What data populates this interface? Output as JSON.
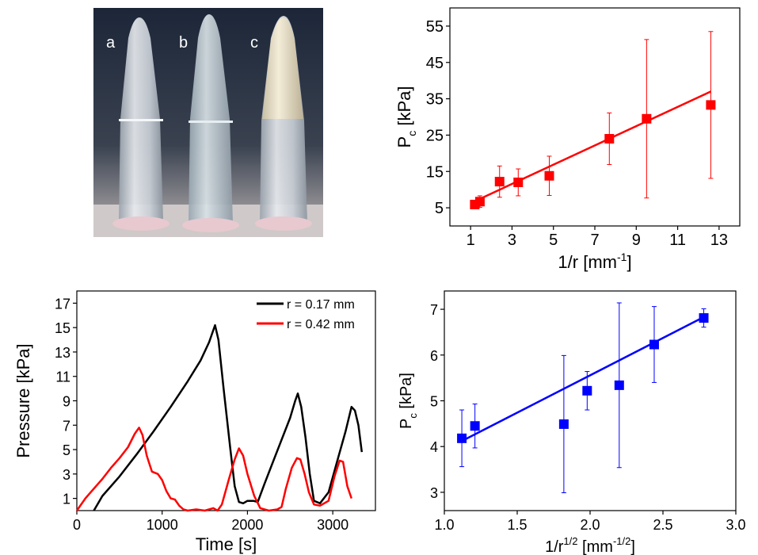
{
  "photo": {
    "labels": [
      "a",
      "b",
      "c"
    ]
  },
  "chart_data": [
    {
      "id": "top-right",
      "type": "scatter",
      "xlabel": "1/r [mm",
      "xlabel_sup": "-1",
      "xlabel_tail": "]",
      "ylabel": "P",
      "ylabel_sub": "c",
      "ylabel_tail": " [kPa]",
      "xlim": [
        0,
        14
      ],
      "ylim": [
        0,
        60
      ],
      "xticks": [
        1,
        3,
        5,
        7,
        9,
        11,
        13
      ],
      "yticks": [
        5,
        15,
        25,
        35,
        45,
        55
      ],
      "color": "#ff0000",
      "points": [
        {
          "x": 1.2,
          "y": 5.9,
          "err": 0.6
        },
        {
          "x": 1.45,
          "y": 6.7,
          "err": 1.6
        },
        {
          "x": 2.4,
          "y": 12.2,
          "err": 4.3
        },
        {
          "x": 3.3,
          "y": 12.0,
          "err": 3.7
        },
        {
          "x": 4.8,
          "y": 13.8,
          "err": 5.4
        },
        {
          "x": 7.7,
          "y": 24.0,
          "err": 7.1
        },
        {
          "x": 9.5,
          "y": 29.5,
          "err": 21.8
        },
        {
          "x": 12.6,
          "y": 33.3,
          "err": 20.2
        }
      ],
      "fit": [
        [
          1.2,
          6.8
        ],
        [
          12.6,
          37.0
        ]
      ]
    },
    {
      "id": "bottom-left",
      "type": "line",
      "xlabel": "Time [s]",
      "ylabel": "Pressure [kPa]",
      "xlim": [
        0,
        3500
      ],
      "ylim": [
        0,
        18
      ],
      "xticks": [
        0,
        1000,
        2000,
        3000
      ],
      "yticks": [
        1,
        3,
        5,
        7,
        9,
        11,
        13,
        15,
        17
      ],
      "legend_position": "top-right",
      "series": [
        {
          "name": "r = 0.17 mm",
          "color": "#000000",
          "points": [
            [
              200,
              0
            ],
            [
              300,
              1.2
            ],
            [
              500,
              2.8
            ],
            [
              700,
              4.6
            ],
            [
              900,
              6.5
            ],
            [
              1100,
              8.5
            ],
            [
              1300,
              10.6
            ],
            [
              1450,
              12.3
            ],
            [
              1550,
              13.8
            ],
            [
              1620,
              15.2
            ],
            [
              1660,
              14.0
            ],
            [
              1720,
              10.0
            ],
            [
              1800,
              5.0
            ],
            [
              1850,
              2.0
            ],
            [
              1900,
              0.7
            ],
            [
              1950,
              0.6
            ],
            [
              2000,
              0.8
            ],
            [
              2070,
              0.8
            ],
            [
              2120,
              0.7
            ],
            [
              2200,
              2.2
            ],
            [
              2300,
              4.0
            ],
            [
              2400,
              5.8
            ],
            [
              2500,
              7.6
            ],
            [
              2560,
              9.0
            ],
            [
              2590,
              9.6
            ],
            [
              2630,
              8.5
            ],
            [
              2680,
              6.0
            ],
            [
              2730,
              3.0
            ],
            [
              2780,
              0.8
            ],
            [
              2850,
              0.6
            ],
            [
              2950,
              1.5
            ],
            [
              3050,
              4.0
            ],
            [
              3150,
              6.5
            ],
            [
              3220,
              8.5
            ],
            [
              3260,
              8.2
            ],
            [
              3300,
              7.0
            ],
            [
              3340,
              4.8
            ]
          ]
        },
        {
          "name": "r = 0.42 mm",
          "color": "#ff0000",
          "points": [
            [
              0,
              0
            ],
            [
              100,
              1.0
            ],
            [
              200,
              1.8
            ],
            [
              300,
              2.6
            ],
            [
              400,
              3.5
            ],
            [
              500,
              4.3
            ],
            [
              600,
              5.2
            ],
            [
              680,
              6.3
            ],
            [
              730,
              6.8
            ],
            [
              770,
              6.2
            ],
            [
              820,
              4.5
            ],
            [
              880,
              3.2
            ],
            [
              950,
              3.0
            ],
            [
              1000,
              2.5
            ],
            [
              1050,
              1.6
            ],
            [
              1100,
              1.0
            ],
            [
              1150,
              0.9
            ],
            [
              1200,
              0.4
            ],
            [
              1250,
              0.1
            ],
            [
              1300,
              0.0
            ],
            [
              1400,
              0.1
            ],
            [
              1500,
              0.0
            ],
            [
              1600,
              0.2
            ],
            [
              1650,
              0.0
            ],
            [
              1700,
              0.5
            ],
            [
              1780,
              2.5
            ],
            [
              1850,
              4.2
            ],
            [
              1900,
              5.1
            ],
            [
              1950,
              4.5
            ],
            [
              2000,
              3.0
            ],
            [
              2080,
              1.2
            ],
            [
              2150,
              0.2
            ],
            [
              2250,
              0.0
            ],
            [
              2350,
              0.1
            ],
            [
              2400,
              0.3
            ],
            [
              2450,
              1.8
            ],
            [
              2520,
              3.5
            ],
            [
              2580,
              4.3
            ],
            [
              2620,
              4.2
            ],
            [
              2670,
              3.0
            ],
            [
              2720,
              1.5
            ],
            [
              2780,
              0.5
            ],
            [
              2850,
              0.4
            ],
            [
              2950,
              0.8
            ],
            [
              3020,
              2.8
            ],
            [
              3080,
              4.1
            ],
            [
              3120,
              4.0
            ],
            [
              3170,
              2.0
            ],
            [
              3220,
              1.0
            ]
          ]
        }
      ]
    },
    {
      "id": "bottom-right",
      "type": "scatter",
      "xlabel": "1/r",
      "xlabel_sup": "1/2",
      "xlabel_mid": " [mm",
      "xlabel_sup2": "-1/2",
      "xlabel_tail": "]",
      "ylabel": "P",
      "ylabel_sub": "c",
      "ylabel_tail": " [kPa]",
      "xlim": [
        1.0,
        3.0
      ],
      "ylim": [
        2.6,
        7.4
      ],
      "xticks": [
        1.0,
        1.5,
        2.0,
        2.5,
        3.0
      ],
      "xtick_labels": [
        "1.0",
        "1.5",
        "2.0",
        "2.5",
        "3.0"
      ],
      "yticks": [
        3,
        4,
        5,
        6,
        7
      ],
      "color": "#0000ff",
      "points": [
        {
          "x": 1.12,
          "y": 4.18,
          "err": 0.62
        },
        {
          "x": 1.21,
          "y": 4.45,
          "err": 0.48
        },
        {
          "x": 1.82,
          "y": 4.49,
          "err": 1.5
        },
        {
          "x": 1.98,
          "y": 5.22,
          "err": 0.42
        },
        {
          "x": 2.2,
          "y": 5.34,
          "err": 1.8
        },
        {
          "x": 2.44,
          "y": 6.23,
          "err": 0.83
        },
        {
          "x": 2.78,
          "y": 6.81,
          "err": 0.2
        }
      ],
      "fit": [
        [
          1.12,
          4.12
        ],
        [
          2.78,
          6.83
        ]
      ]
    }
  ]
}
